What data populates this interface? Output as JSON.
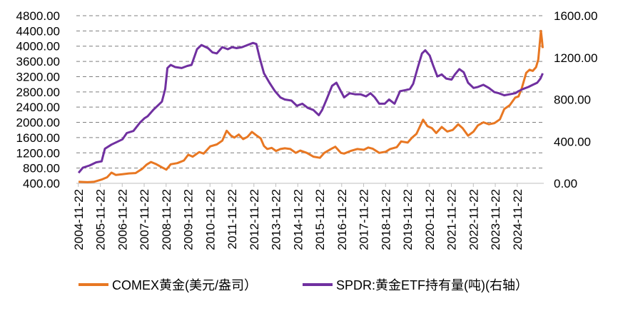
{
  "chart_data": {
    "type": "line",
    "title": "",
    "x_tick_labels": [
      "2004-11-22",
      "2005-11-22",
      "2006-11-22",
      "2007-11-22",
      "2008-11-22",
      "2009-11-22",
      "2010-11-22",
      "2011-11-22",
      "2012-11-22",
      "2013-11-22",
      "2014-11-22",
      "2015-11-22",
      "2016-11-22",
      "2017-11-22",
      "2018-11-22",
      "2019-11-22",
      "2020-11-22",
      "2021-11-22",
      "2022-11-22",
      "2023-11-22",
      "2024-11-22"
    ],
    "y_left": {
      "min": 400,
      "max": 4800,
      "step": 400,
      "tick_labels": [
        "400.00",
        "800.00",
        "1200.00",
        "1600.00",
        "2000.00",
        "2400.00",
        "2800.00",
        "3200.00",
        "3600.00",
        "4000.00",
        "4400.00",
        "4800.00"
      ]
    },
    "y_right": {
      "min": 0,
      "max": 1600,
      "step": 400,
      "tick_labels": [
        "0.00",
        "400.00",
        "800.00",
        "1200.00",
        "1600.00"
      ]
    },
    "grid": "horizontal-dashed",
    "legend_position": "bottom",
    "series": [
      {
        "name": "COMEX黄金(美元/盎司）",
        "axis": "left",
        "color": "#E87722",
        "points": [
          [
            2004.9,
            440
          ],
          [
            2005.3,
            430
          ],
          [
            2005.6,
            440
          ],
          [
            2005.95,
            500
          ],
          [
            2006.2,
            560
          ],
          [
            2006.4,
            680
          ],
          [
            2006.6,
            620
          ],
          [
            2006.9,
            640
          ],
          [
            2007.2,
            660
          ],
          [
            2007.5,
            670
          ],
          [
            2007.8,
            780
          ],
          [
            2008.0,
            890
          ],
          [
            2008.2,
            960
          ],
          [
            2008.45,
            900
          ],
          [
            2008.7,
            820
          ],
          [
            2008.9,
            760
          ],
          [
            2009.1,
            900
          ],
          [
            2009.4,
            930
          ],
          [
            2009.7,
            1000
          ],
          [
            2009.9,
            1150
          ],
          [
            2010.1,
            1100
          ],
          [
            2010.4,
            1220
          ],
          [
            2010.6,
            1180
          ],
          [
            2010.9,
            1370
          ],
          [
            2011.2,
            1420
          ],
          [
            2011.45,
            1520
          ],
          [
            2011.65,
            1780
          ],
          [
            2011.85,
            1650
          ],
          [
            2012.0,
            1600
          ],
          [
            2012.2,
            1680
          ],
          [
            2012.4,
            1560
          ],
          [
            2012.6,
            1620
          ],
          [
            2012.8,
            1750
          ],
          [
            2013.0,
            1660
          ],
          [
            2013.2,
            1580
          ],
          [
            2013.35,
            1380
          ],
          [
            2013.5,
            1300
          ],
          [
            2013.7,
            1330
          ],
          [
            2013.9,
            1250
          ],
          [
            2014.1,
            1300
          ],
          [
            2014.3,
            1320
          ],
          [
            2014.55,
            1300
          ],
          [
            2014.8,
            1200
          ],
          [
            2015.0,
            1260
          ],
          [
            2015.3,
            1200
          ],
          [
            2015.6,
            1100
          ],
          [
            2015.9,
            1070
          ],
          [
            2016.1,
            1200
          ],
          [
            2016.4,
            1300
          ],
          [
            2016.6,
            1360
          ],
          [
            2016.85,
            1200
          ],
          [
            2017.0,
            1180
          ],
          [
            2017.3,
            1250
          ],
          [
            2017.6,
            1300
          ],
          [
            2017.9,
            1280
          ],
          [
            2018.1,
            1340
          ],
          [
            2018.3,
            1310
          ],
          [
            2018.6,
            1200
          ],
          [
            2018.9,
            1230
          ],
          [
            2019.1,
            1300
          ],
          [
            2019.4,
            1350
          ],
          [
            2019.6,
            1500
          ],
          [
            2019.9,
            1470
          ],
          [
            2020.1,
            1600
          ],
          [
            2020.3,
            1700
          ],
          [
            2020.6,
            2070
          ],
          [
            2020.8,
            1900
          ],
          [
            2021.0,
            1850
          ],
          [
            2021.2,
            1720
          ],
          [
            2021.45,
            1880
          ],
          [
            2021.7,
            1760
          ],
          [
            2021.95,
            1800
          ],
          [
            2022.2,
            1950
          ],
          [
            2022.4,
            1850
          ],
          [
            2022.65,
            1650
          ],
          [
            2022.9,
            1760
          ],
          [
            2023.1,
            1920
          ],
          [
            2023.35,
            2000
          ],
          [
            2023.6,
            1950
          ],
          [
            2023.85,
            1980
          ],
          [
            2024.1,
            2080
          ],
          [
            2024.3,
            2350
          ],
          [
            2024.55,
            2450
          ],
          [
            2024.8,
            2650
          ],
          [
            2024.95,
            2680
          ],
          [
            2025.1,
            2900
          ],
          [
            2025.3,
            3300
          ],
          [
            2025.45,
            3380
          ],
          [
            2025.6,
            3350
          ],
          [
            2025.75,
            3450
          ],
          [
            2025.85,
            3650
          ],
          [
            2025.92,
            4100
          ],
          [
            2025.97,
            4400
          ],
          [
            2026.02,
            4150
          ],
          [
            2026.05,
            3950
          ]
        ]
      },
      {
        "name": "SPDR:黄金ETF持有量(吨)(右轴）",
        "axis": "right",
        "color": "#7030A0",
        "points": [
          [
            2004.9,
            100
          ],
          [
            2005.1,
            150
          ],
          [
            2005.4,
            170
          ],
          [
            2005.7,
            200
          ],
          [
            2005.95,
            210
          ],
          [
            2006.1,
            330
          ],
          [
            2006.4,
            370
          ],
          [
            2006.7,
            400
          ],
          [
            2006.9,
            420
          ],
          [
            2007.1,
            480
          ],
          [
            2007.4,
            500
          ],
          [
            2007.7,
            580
          ],
          [
            2007.9,
            620
          ],
          [
            2008.05,
            640
          ],
          [
            2008.3,
            700
          ],
          [
            2008.5,
            740
          ],
          [
            2008.7,
            780
          ],
          [
            2008.85,
            900
          ],
          [
            2008.95,
            1100
          ],
          [
            2009.1,
            1130
          ],
          [
            2009.3,
            1110
          ],
          [
            2009.6,
            1100
          ],
          [
            2009.85,
            1120
          ],
          [
            2010.05,
            1130
          ],
          [
            2010.3,
            1280
          ],
          [
            2010.5,
            1320
          ],
          [
            2010.8,
            1290
          ],
          [
            2011.0,
            1250
          ],
          [
            2011.2,
            1240
          ],
          [
            2011.45,
            1300
          ],
          [
            2011.7,
            1280
          ],
          [
            2011.9,
            1300
          ],
          [
            2012.1,
            1290
          ],
          [
            2012.35,
            1300
          ],
          [
            2012.6,
            1320
          ],
          [
            2012.85,
            1340
          ],
          [
            2013.0,
            1330
          ],
          [
            2013.15,
            1200
          ],
          [
            2013.35,
            1050
          ],
          [
            2013.6,
            960
          ],
          [
            2013.85,
            880
          ],
          [
            2014.1,
            820
          ],
          [
            2014.3,
            800
          ],
          [
            2014.6,
            790
          ],
          [
            2014.85,
            740
          ],
          [
            2015.1,
            760
          ],
          [
            2015.35,
            720
          ],
          [
            2015.6,
            700
          ],
          [
            2015.85,
            650
          ],
          [
            2016.0,
            700
          ],
          [
            2016.2,
            800
          ],
          [
            2016.45,
            930
          ],
          [
            2016.65,
            960
          ],
          [
            2016.85,
            880
          ],
          [
            2017.0,
            820
          ],
          [
            2017.25,
            860
          ],
          [
            2017.5,
            850
          ],
          [
            2017.75,
            850
          ],
          [
            2018.0,
            830
          ],
          [
            2018.2,
            860
          ],
          [
            2018.4,
            820
          ],
          [
            2018.6,
            760
          ],
          [
            2018.85,
            760
          ],
          [
            2019.05,
            800
          ],
          [
            2019.3,
            760
          ],
          [
            2019.55,
            880
          ],
          [
            2019.8,
            890
          ],
          [
            2020.0,
            900
          ],
          [
            2020.15,
            950
          ],
          [
            2020.35,
            1100
          ],
          [
            2020.55,
            1240
          ],
          [
            2020.7,
            1270
          ],
          [
            2020.9,
            1220
          ],
          [
            2021.05,
            1130
          ],
          [
            2021.25,
            1020
          ],
          [
            2021.45,
            1040
          ],
          [
            2021.65,
            1000
          ],
          [
            2021.9,
            990
          ],
          [
            2022.05,
            1040
          ],
          [
            2022.25,
            1090
          ],
          [
            2022.45,
            1060
          ],
          [
            2022.65,
            960
          ],
          [
            2022.9,
            910
          ],
          [
            2023.1,
            920
          ],
          [
            2023.35,
            940
          ],
          [
            2023.6,
            910
          ],
          [
            2023.85,
            870
          ],
          [
            2024.05,
            860
          ],
          [
            2024.3,
            840
          ],
          [
            2024.55,
            850
          ],
          [
            2024.8,
            860
          ],
          [
            2024.95,
            880
          ],
          [
            2025.15,
            900
          ],
          [
            2025.4,
            920
          ],
          [
            2025.6,
            940
          ],
          [
            2025.8,
            960
          ],
          [
            2025.95,
            1000
          ],
          [
            2026.05,
            1050
          ]
        ]
      }
    ]
  }
}
